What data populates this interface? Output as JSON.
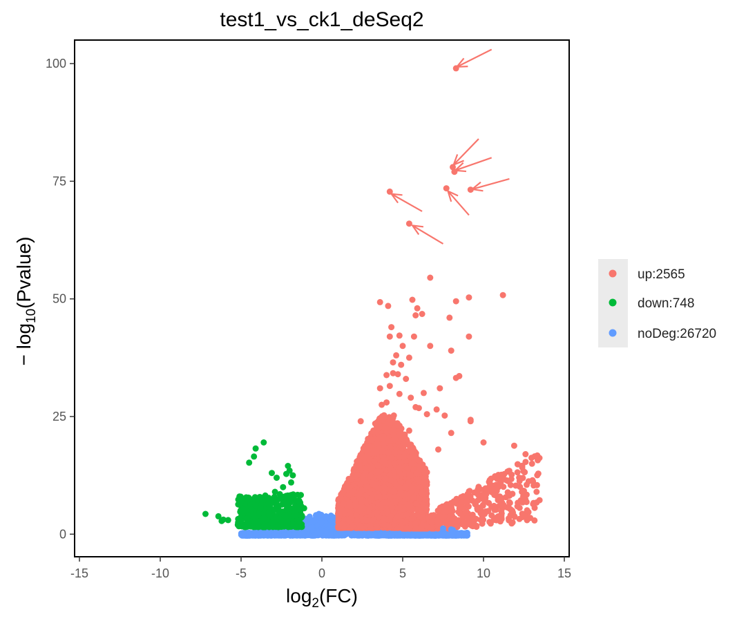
{
  "chart_data": {
    "type": "scatter",
    "title": "test1_vs_ck1_deSeq2",
    "xlabel": {
      "base": "log",
      "sub": "2",
      "rest": "(FC)"
    },
    "ylabel": {
      "prefix": "− log",
      "sub": "10",
      "rest": "(Pvalue)"
    },
    "xlim": [
      -15.3,
      15.3
    ],
    "ylim": [
      -4.8,
      105
    ],
    "xticks": [
      -15,
      -10,
      -5,
      0,
      5,
      10,
      15
    ],
    "yticks": [
      0,
      25,
      50,
      75,
      100
    ],
    "legend_position": "right",
    "series": [
      {
        "name": "up",
        "label": "up:2565",
        "color": "#F8766D",
        "points": [
          [
            8.3,
            99
          ],
          [
            8.1,
            78
          ],
          [
            8.2,
            77
          ],
          [
            9.2,
            73.2
          ],
          [
            7.7,
            73.5
          ],
          [
            4.2,
            72.8
          ],
          [
            5.4,
            66
          ],
          [
            6.7,
            54.5
          ],
          [
            11.2,
            50.8
          ],
          [
            9.1,
            50.3
          ],
          [
            8.3,
            49.5
          ],
          [
            3.6,
            49.3
          ],
          [
            5.6,
            49.8
          ],
          [
            4.1,
            48.5
          ],
          [
            5.9,
            48
          ],
          [
            6.2,
            46.8
          ],
          [
            5.8,
            46.5
          ],
          [
            7.9,
            46
          ],
          [
            4.3,
            44
          ],
          [
            4.8,
            42.2
          ],
          [
            4.2,
            42
          ],
          [
            5.7,
            42
          ],
          [
            9.1,
            42
          ],
          [
            5.0,
            40
          ],
          [
            6.7,
            40
          ],
          [
            8.0,
            39
          ],
          [
            4.6,
            38
          ],
          [
            5.4,
            37.5
          ],
          [
            4.4,
            36.5
          ],
          [
            4.9,
            36
          ],
          [
            4.4,
            34.2
          ],
          [
            4.7,
            34
          ],
          [
            4.0,
            33.8
          ],
          [
            8.5,
            33.6
          ],
          [
            8.3,
            33.2
          ],
          [
            5.2,
            33
          ],
          [
            4.2,
            31.5
          ],
          [
            3.6,
            31
          ],
          [
            7.3,
            31
          ],
          [
            4.8,
            29.8
          ],
          [
            5.5,
            29
          ],
          [
            6.3,
            30
          ],
          [
            4.0,
            28
          ],
          [
            3.7,
            27.5
          ],
          [
            5.8,
            27
          ],
          [
            6.0,
            26.8
          ],
          [
            7.1,
            26.5
          ],
          [
            6.5,
            25.5
          ],
          [
            7.6,
            25.2
          ],
          [
            9.2,
            24.3
          ],
          [
            9.2,
            24
          ],
          [
            2.4,
            24
          ],
          [
            3.3,
            23.5
          ],
          [
            5.4,
            22
          ],
          [
            8.0,
            21.5
          ],
          [
            10.0,
            19.5
          ],
          [
            11.9,
            18.8
          ],
          [
            7.2,
            18
          ],
          [
            12.6,
            17
          ],
          [
            10.1,
            4.5
          ],
          [
            10.5,
            4
          ],
          [
            11.6,
            6.8
          ],
          [
            11.7,
            5.2
          ],
          [
            11.8,
            2.5
          ],
          [
            12.5,
            9.2
          ],
          [
            9.0,
            3.5
          ],
          [
            9.5,
            3.2
          ],
          [
            9.4,
            2.5
          ],
          [
            9.1,
            2.3
          ]
        ]
      },
      {
        "name": "down",
        "label": "down:748",
        "color": "#00BA38",
        "points": [
          [
            -3.6,
            19.5
          ],
          [
            -4.1,
            18.2
          ],
          [
            -2.1,
            14.5
          ],
          [
            -4.2,
            16.5
          ],
          [
            -2.0,
            13.5
          ],
          [
            -2.8,
            12
          ],
          [
            -2.2,
            12.8
          ],
          [
            -1.8,
            12.5
          ],
          [
            -3.1,
            13
          ],
          [
            -4.5,
            15.2
          ],
          [
            -1.9,
            11
          ],
          [
            -2.4,
            10
          ],
          [
            -5.1,
            8
          ],
          [
            -7.2,
            4.3
          ],
          [
            -6.4,
            3.8
          ],
          [
            -6.1,
            3.1
          ],
          [
            -6.2,
            2.8
          ],
          [
            -5.8,
            3
          ],
          [
            -5.0,
            2.8
          ],
          [
            -5.2,
            2
          ],
          [
            -4.7,
            5.1
          ],
          [
            -4.1,
            6.1
          ],
          [
            -3.5,
            8.2
          ],
          [
            -3.2,
            7.4
          ],
          [
            -2.9,
            9
          ],
          [
            -2.6,
            8.5
          ],
          [
            -3.8,
            5.5
          ],
          [
            -3.3,
            6.6
          ],
          [
            -1.4,
            7.1
          ],
          [
            -1.1,
            5.5
          ]
        ]
      },
      {
        "name": "noDeg",
        "label": "noDeg:26720",
        "color": "#619CFF",
        "points": [
          [
            7.5,
            1.2
          ],
          [
            8.0,
            1.0
          ],
          [
            8.1,
            0.9
          ]
        ]
      }
    ],
    "annotations": [
      {
        "type": "arrow",
        "from": [
          10.5,
          103
        ],
        "to": [
          8.35,
          99.3
        ],
        "color": "#F8766D"
      },
      {
        "type": "arrow",
        "from": [
          9.7,
          84
        ],
        "to": [
          8.15,
          78.5
        ],
        "color": "#F8766D"
      },
      {
        "type": "arrow",
        "from": [
          10.5,
          80
        ],
        "to": [
          8.25,
          77.3
        ],
        "color": "#F8766D"
      },
      {
        "type": "arrow",
        "from": [
          11.6,
          75.5
        ],
        "to": [
          9.3,
          73.3
        ],
        "color": "#F8766D"
      },
      {
        "type": "arrow",
        "from": [
          9.1,
          67.8
        ],
        "to": [
          7.8,
          72.9
        ],
        "color": "#F8766D"
      },
      {
        "type": "arrow",
        "from": [
          6.2,
          68.6
        ],
        "to": [
          4.3,
          72.3
        ],
        "color": "#F8766D"
      },
      {
        "type": "arrow",
        "from": [
          7.5,
          61.7
        ],
        "to": [
          5.6,
          65.6
        ],
        "color": "#F8766D"
      }
    ]
  }
}
